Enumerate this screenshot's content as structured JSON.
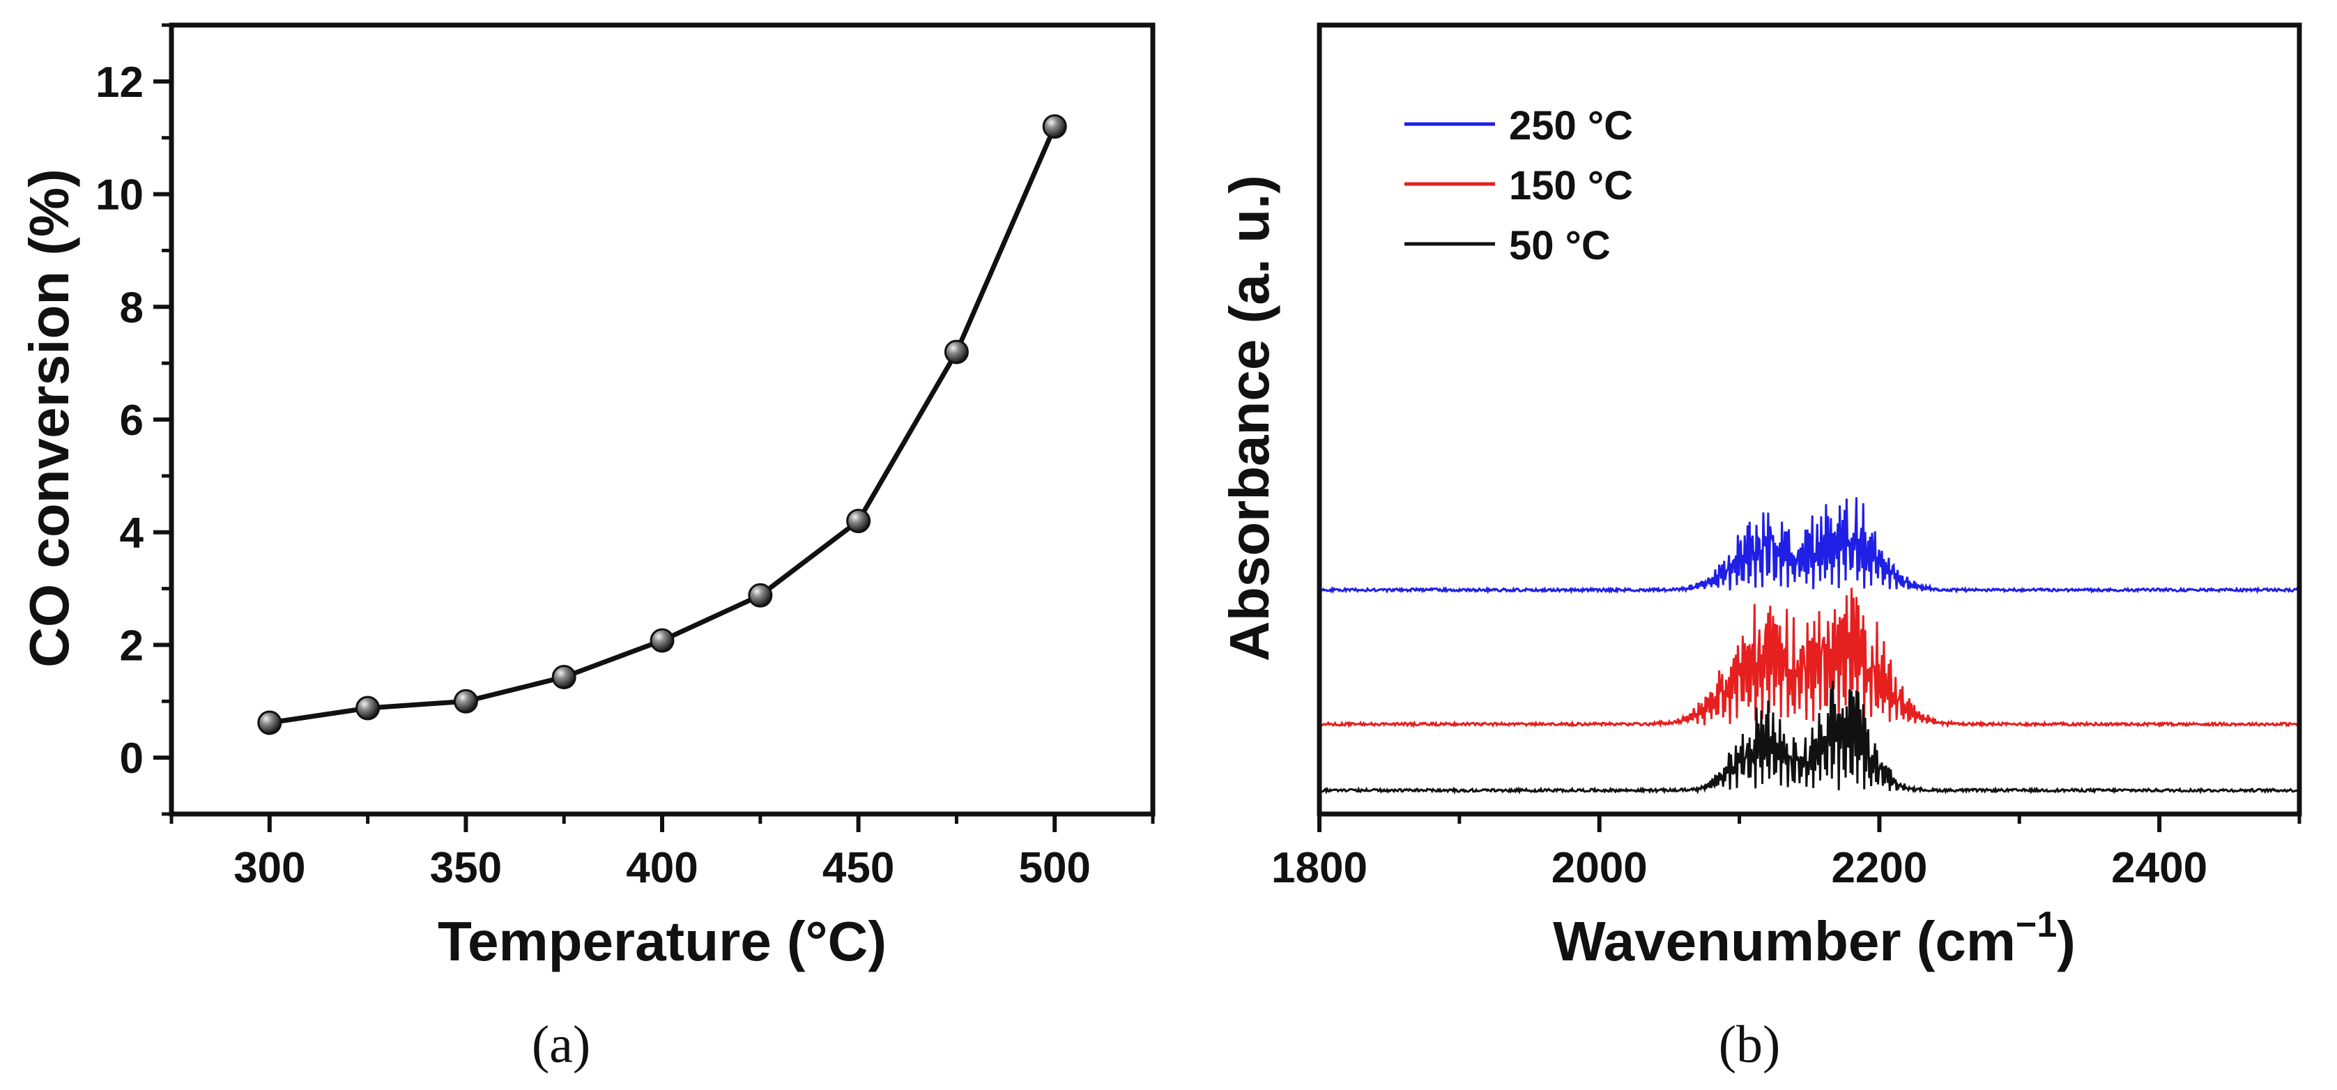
{
  "chart_data": [
    {
      "panel": "a",
      "type": "line",
      "caption": "(a)",
      "xlabel": "Temperature (°C)",
      "ylabel": "CO conversion (%)",
      "xlim": [
        275,
        525
      ],
      "ylim": [
        -1,
        13
      ],
      "xticks": [
        300,
        350,
        400,
        450,
        500
      ],
      "xtick_labels": [
        "300",
        "350",
        "400",
        "450",
        "500"
      ],
      "yticks": [
        0,
        2,
        4,
        6,
        8,
        10,
        12
      ],
      "ytick_labels": [
        "0",
        "2",
        "4",
        "6",
        "8",
        "10",
        "12"
      ],
      "grid": false,
      "series": [
        {
          "name": "CO conversion",
          "color": "#111111",
          "marker": "sphere",
          "x": [
            300,
            325,
            350,
            375,
            400,
            425,
            450,
            475,
            500
          ],
          "values": [
            0.62,
            0.88,
            1.0,
            1.43,
            2.08,
            2.88,
            4.2,
            7.2,
            11.2
          ]
        }
      ]
    },
    {
      "panel": "b",
      "type": "line",
      "caption": "(b)",
      "xlabel": "Wavenumber (cm",
      "xlabel_superscript": "−1",
      "xlabel_suffix": ")",
      "ylabel": "Absorbance (a. u.)",
      "xlim": [
        1800,
        2500
      ],
      "xticks": [
        1800,
        2000,
        2200,
        2400
      ],
      "xtick_labels": [
        "1800",
        "2000",
        "2200",
        "2400"
      ],
      "y_ticks_shown": false,
      "grid": false,
      "legend_position": "top-left",
      "legend": [
        {
          "label": "250 °C",
          "color": "#1f1fe6"
        },
        {
          "label": "150 °C",
          "color": "#e61f1f"
        },
        {
          "label": "50 °C",
          "color": "#111111"
        }
      ],
      "series": [
        {
          "name": "250 °C",
          "color": "#1f1fe6",
          "baseline": 5.75,
          "band_centers": [
            2117,
            2177
          ],
          "band_heights": [
            2.4,
            3.0
          ],
          "band_widths": [
            22,
            22
          ]
        },
        {
          "name": "150 °C",
          "color": "#e61f1f",
          "baseline": 1.9,
          "band_centers": [
            2115,
            2178
          ],
          "band_heights": [
            3.6,
            4.2
          ],
          "band_widths": [
            24,
            24
          ]
        },
        {
          "name": "50 °C",
          "color": "#111111",
          "baseline": 0.0,
          "band_centers": [
            2116,
            2175
          ],
          "band_heights": [
            2.8,
            3.5
          ],
          "band_widths": [
            18,
            18
          ]
        }
      ]
    }
  ]
}
